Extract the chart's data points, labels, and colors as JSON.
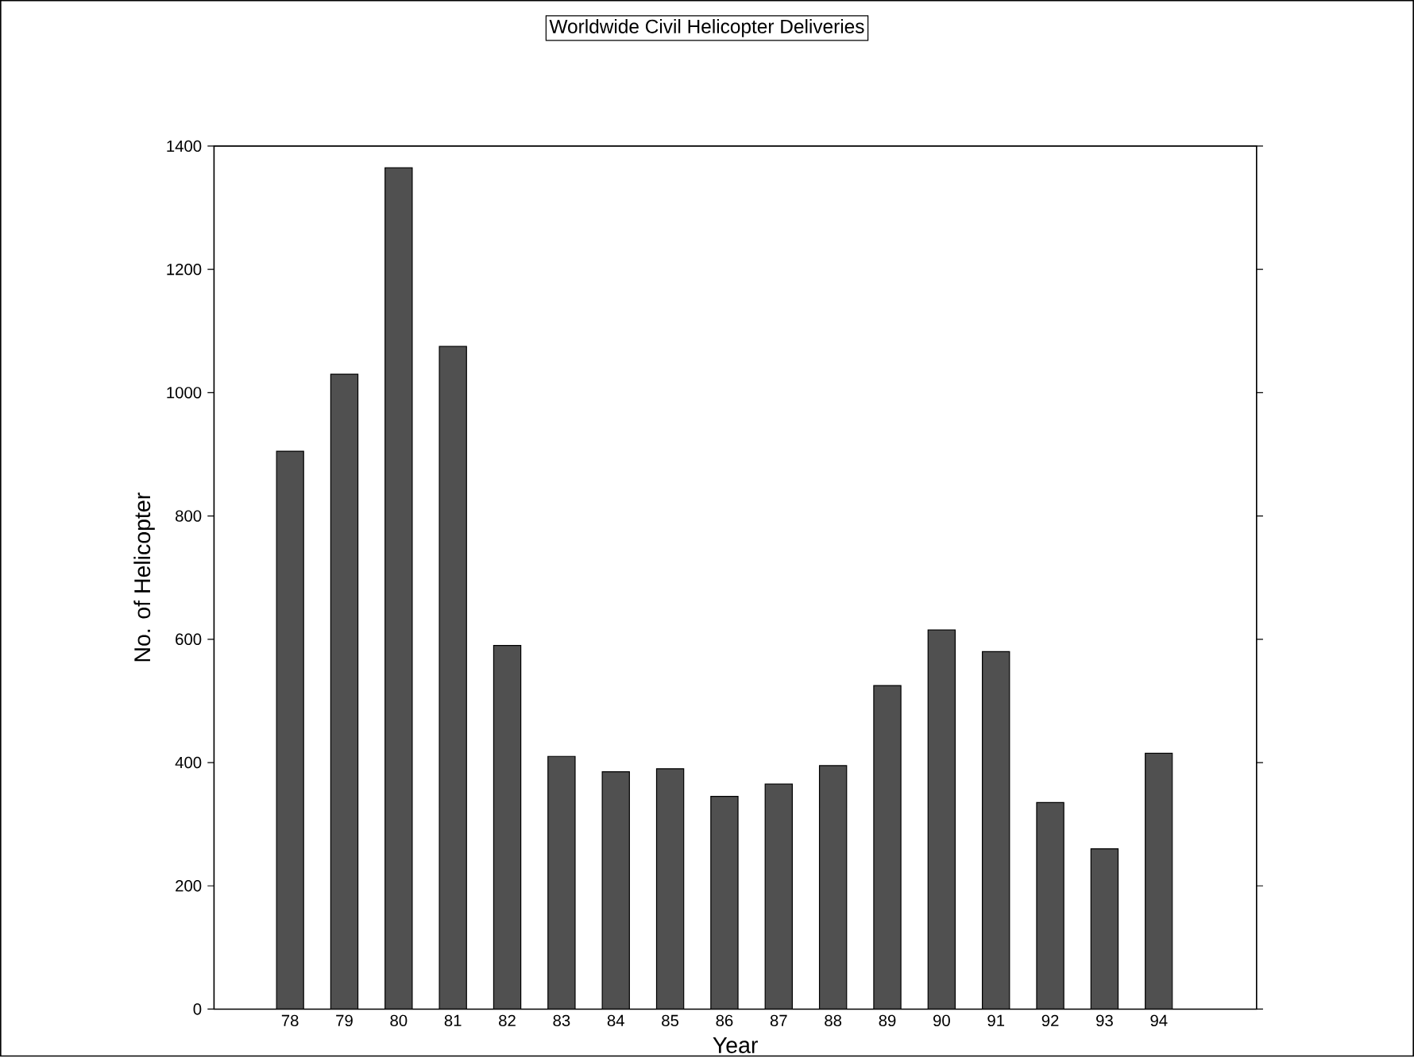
{
  "chart_data": {
    "type": "bar",
    "title": "Worldwide Civil Helicopter Deliveries",
    "xlabel": "Year",
    "ylabel": "No. of Helicopter",
    "categories": [
      "78",
      "79",
      "80",
      "81",
      "82",
      "83",
      "84",
      "85",
      "86",
      "87",
      "88",
      "89",
      "90",
      "91",
      "92",
      "93",
      "94"
    ],
    "values": [
      905,
      1030,
      1365,
      1075,
      590,
      410,
      385,
      390,
      345,
      365,
      395,
      525,
      615,
      580,
      335,
      260,
      415
    ],
    "color": "#505050",
    "ylim": [
      0,
      1400
    ],
    "yticks": [
      0,
      200,
      400,
      600,
      800,
      1000,
      1200,
      1400
    ],
    "grid": false
  }
}
